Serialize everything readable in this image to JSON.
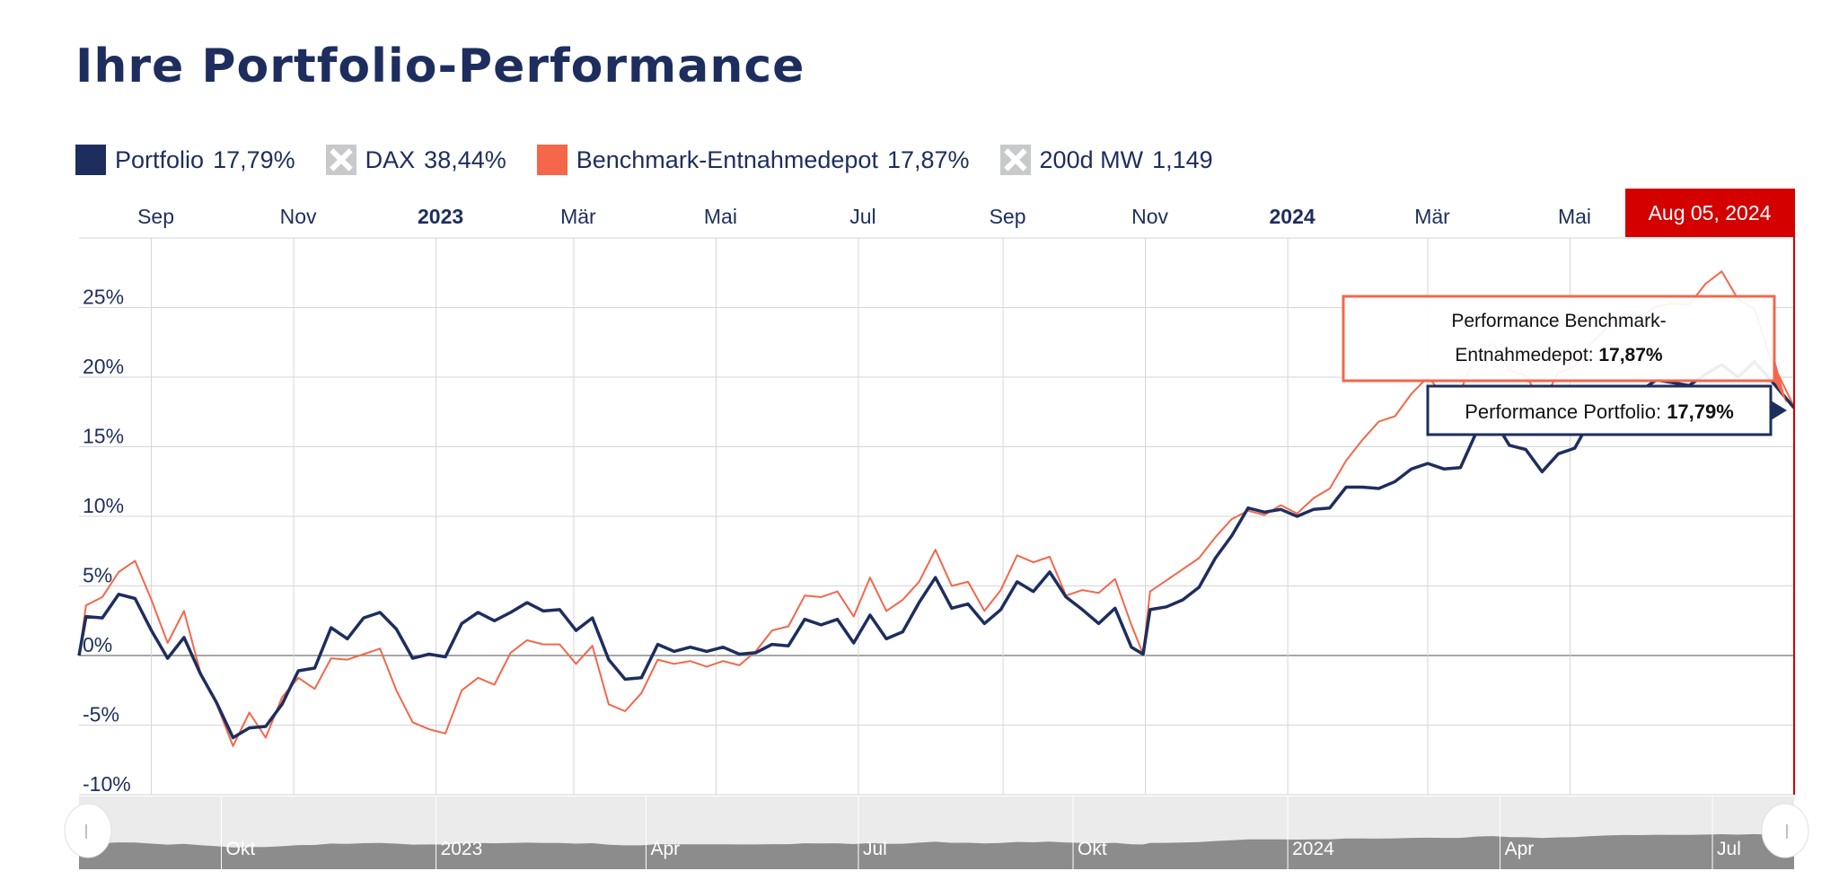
{
  "title": "Ihre Portfolio-Performance",
  "legend": [
    {
      "name": "Portfolio",
      "value": "17,79%",
      "color": "#1d2e5e",
      "enabled": true
    },
    {
      "name": "DAX",
      "value": "38,44%",
      "color": "#c8c9cb",
      "enabled": false
    },
    {
      "name": "Benchmark-Entnahmedepot",
      "value": "17,87%",
      "color": "#f4674a",
      "enabled": true
    },
    {
      "name": "200d MW",
      "value": "1,149",
      "color": "#c8c9cb",
      "enabled": false
    }
  ],
  "crosshair": {
    "date_label": "Aug 05, 2024",
    "color": "#d40000"
  },
  "tooltips": {
    "benchmark": {
      "label_line1": "Performance Benchmark-",
      "label_line2": "Entnahmedepot",
      "value": "17,87%"
    },
    "portfolio": {
      "label": "Performance Portfolio",
      "value": "17,79%"
    }
  },
  "navigator": {
    "labels": [
      "Okt",
      "2023",
      "Apr",
      "Jul",
      "Okt",
      "2024",
      "Apr",
      "Jul"
    ]
  },
  "chart_data": {
    "type": "line",
    "x_ticks": [
      {
        "label": "Sep",
        "date": "2022-09-01",
        "bold": false
      },
      {
        "label": "Nov",
        "date": "2022-11-01",
        "bold": false
      },
      {
        "label": "2023",
        "date": "2023-01-01",
        "bold": true
      },
      {
        "label": "Mär",
        "date": "2023-03-01",
        "bold": false
      },
      {
        "label": "Mai",
        "date": "2023-05-01",
        "bold": false
      },
      {
        "label": "Jul",
        "date": "2023-07-01",
        "bold": false
      },
      {
        "label": "Sep",
        "date": "2023-09-01",
        "bold": false
      },
      {
        "label": "Nov",
        "date": "2023-11-01",
        "bold": false
      },
      {
        "label": "2024",
        "date": "2024-01-01",
        "bold": true
      },
      {
        "label": "Mär",
        "date": "2024-03-01",
        "bold": false
      },
      {
        "label": "Mai",
        "date": "2024-05-01",
        "bold": false
      }
    ],
    "x_range": [
      "2022-08-01",
      "2024-08-05"
    ],
    "y_ticks": [
      -10,
      -5,
      0,
      5,
      10,
      15,
      20,
      25
    ],
    "y_tick_format": "{v}%",
    "ylim": [
      -10,
      30
    ],
    "grid": true,
    "legend_position": "top-left",
    "series": [
      {
        "name": "Portfolio",
        "color": "#1d2e5e",
        "width": 3.5,
        "points": [
          [
            "2022-08-01",
            0
          ],
          [
            "2022-08-04",
            2.8
          ],
          [
            "2022-08-11",
            2.7
          ],
          [
            "2022-08-18",
            4.4
          ],
          [
            "2022-08-25",
            4.1
          ],
          [
            "2022-09-01",
            1.8
          ],
          [
            "2022-09-08",
            -0.2
          ],
          [
            "2022-09-15",
            1.3
          ],
          [
            "2022-09-22",
            -1.3
          ],
          [
            "2022-09-29",
            -3.4
          ],
          [
            "2022-10-06",
            -5.9
          ],
          [
            "2022-10-13",
            -5.2
          ],
          [
            "2022-10-20",
            -5.1
          ],
          [
            "2022-10-27",
            -3.5
          ],
          [
            "2022-11-03",
            -1.1
          ],
          [
            "2022-11-10",
            -0.9
          ],
          [
            "2022-11-17",
            2.0
          ],
          [
            "2022-11-24",
            1.2
          ],
          [
            "2022-12-01",
            2.7
          ],
          [
            "2022-12-08",
            3.1
          ],
          [
            "2022-12-15",
            1.9
          ],
          [
            "2022-12-22",
            -0.2
          ],
          [
            "2022-12-29",
            0.1
          ],
          [
            "2023-01-05",
            -0.1
          ],
          [
            "2023-01-12",
            2.3
          ],
          [
            "2023-01-19",
            3.1
          ],
          [
            "2023-01-26",
            2.5
          ],
          [
            "2023-02-02",
            3.1
          ],
          [
            "2023-02-09",
            3.8
          ],
          [
            "2023-02-16",
            3.2
          ],
          [
            "2023-02-23",
            3.3
          ],
          [
            "2023-03-02",
            1.8
          ],
          [
            "2023-03-09",
            2.7
          ],
          [
            "2023-03-16",
            -0.3
          ],
          [
            "2023-03-23",
            -1.7
          ],
          [
            "2023-03-30",
            -1.6
          ],
          [
            "2023-04-06",
            0.8
          ],
          [
            "2023-04-13",
            0.3
          ],
          [
            "2023-04-20",
            0.6
          ],
          [
            "2023-04-27",
            0.3
          ],
          [
            "2023-05-04",
            0.6
          ],
          [
            "2023-05-11",
            0.1
          ],
          [
            "2023-05-18",
            0.2
          ],
          [
            "2023-05-25",
            0.8
          ],
          [
            "2023-06-01",
            0.7
          ],
          [
            "2023-06-08",
            2.6
          ],
          [
            "2023-06-15",
            2.2
          ],
          [
            "2023-06-22",
            2.6
          ],
          [
            "2023-06-29",
            0.9
          ],
          [
            "2023-07-06",
            2.9
          ],
          [
            "2023-07-13",
            1.2
          ],
          [
            "2023-07-20",
            1.7
          ],
          [
            "2023-07-27",
            3.8
          ],
          [
            "2023-08-03",
            5.6
          ],
          [
            "2023-08-10",
            3.4
          ],
          [
            "2023-08-17",
            3.7
          ],
          [
            "2023-08-24",
            2.3
          ],
          [
            "2023-08-31",
            3.3
          ],
          [
            "2023-09-07",
            5.3
          ],
          [
            "2023-09-14",
            4.6
          ],
          [
            "2023-09-21",
            6.0
          ],
          [
            "2023-09-28",
            4.2
          ],
          [
            "2023-10-05",
            3.3
          ],
          [
            "2023-10-12",
            2.3
          ],
          [
            "2023-10-19",
            3.4
          ],
          [
            "2023-10-26",
            0.6
          ],
          [
            "2023-10-31",
            0.1
          ],
          [
            "2023-11-03",
            3.3
          ],
          [
            "2023-11-10",
            3.5
          ],
          [
            "2023-11-17",
            4.0
          ],
          [
            "2023-11-24",
            4.9
          ],
          [
            "2023-12-01",
            7.0
          ],
          [
            "2023-12-08",
            8.6
          ],
          [
            "2023-12-15",
            10.6
          ],
          [
            "2023-12-22",
            10.3
          ],
          [
            "2023-12-29",
            10.5
          ],
          [
            "2024-01-05",
            10.0
          ],
          [
            "2024-01-12",
            10.5
          ],
          [
            "2024-01-19",
            10.6
          ],
          [
            "2024-01-26",
            12.1
          ],
          [
            "2024-02-02",
            12.1
          ],
          [
            "2024-02-09",
            12.0
          ],
          [
            "2024-02-16",
            12.5
          ],
          [
            "2024-02-23",
            13.4
          ],
          [
            "2024-03-01",
            13.8
          ],
          [
            "2024-03-08",
            13.4
          ],
          [
            "2024-03-15",
            13.5
          ],
          [
            "2024-03-22",
            16.1
          ],
          [
            "2024-03-29",
            17.0
          ],
          [
            "2024-04-05",
            15.1
          ],
          [
            "2024-04-12",
            14.8
          ],
          [
            "2024-04-19",
            13.2
          ],
          [
            "2024-04-26",
            14.5
          ],
          [
            "2024-05-03",
            14.9
          ],
          [
            "2024-05-10",
            17.0
          ],
          [
            "2024-05-17",
            18.3
          ],
          [
            "2024-05-24",
            19.2
          ],
          [
            "2024-05-31",
            19.0
          ],
          [
            "2024-06-07",
            19.8
          ],
          [
            "2024-06-14",
            19.6
          ],
          [
            "2024-06-21",
            19.4
          ],
          [
            "2024-06-28",
            20.2
          ],
          [
            "2024-07-05",
            20.9
          ],
          [
            "2024-07-12",
            20.0
          ],
          [
            "2024-07-19",
            21.1
          ],
          [
            "2024-07-26",
            19.8
          ],
          [
            "2024-08-05",
            17.79
          ]
        ]
      },
      {
        "name": "Benchmark-Entnahmedepot",
        "color": "#f4674a",
        "width": 2,
        "points": [
          [
            "2022-08-01",
            0
          ],
          [
            "2022-08-04",
            3.6
          ],
          [
            "2022-08-11",
            4.2
          ],
          [
            "2022-08-18",
            6.0
          ],
          [
            "2022-08-25",
            6.8
          ],
          [
            "2022-09-01",
            4.0
          ],
          [
            "2022-09-08",
            0.9
          ],
          [
            "2022-09-15",
            3.2
          ],
          [
            "2022-09-22",
            -1.2
          ],
          [
            "2022-09-29",
            -3.5
          ],
          [
            "2022-10-06",
            -6.5
          ],
          [
            "2022-10-13",
            -4.1
          ],
          [
            "2022-10-20",
            -5.9
          ],
          [
            "2022-10-27",
            -3.0
          ],
          [
            "2022-11-03",
            -1.6
          ],
          [
            "2022-11-10",
            -2.4
          ],
          [
            "2022-11-17",
            -0.2
          ],
          [
            "2022-11-24",
            -0.3
          ],
          [
            "2022-12-01",
            0.1
          ],
          [
            "2022-12-08",
            0.5
          ],
          [
            "2022-12-15",
            -2.5
          ],
          [
            "2022-12-22",
            -4.8
          ],
          [
            "2022-12-29",
            -5.3
          ],
          [
            "2023-01-05",
            -5.6
          ],
          [
            "2023-01-12",
            -2.5
          ],
          [
            "2023-01-19",
            -1.6
          ],
          [
            "2023-01-26",
            -2.1
          ],
          [
            "2023-02-02",
            0.2
          ],
          [
            "2023-02-09",
            1.1
          ],
          [
            "2023-02-16",
            0.8
          ],
          [
            "2023-02-23",
            0.8
          ],
          [
            "2023-03-02",
            -0.6
          ],
          [
            "2023-03-09",
            0.7
          ],
          [
            "2023-03-16",
            -3.5
          ],
          [
            "2023-03-23",
            -4.0
          ],
          [
            "2023-03-30",
            -2.7
          ],
          [
            "2023-04-06",
            -0.3
          ],
          [
            "2023-04-13",
            -0.6
          ],
          [
            "2023-04-20",
            -0.4
          ],
          [
            "2023-04-27",
            -0.8
          ],
          [
            "2023-05-04",
            -0.4
          ],
          [
            "2023-05-11",
            -0.7
          ],
          [
            "2023-05-18",
            0.3
          ],
          [
            "2023-05-25",
            1.8
          ],
          [
            "2023-06-01",
            2.1
          ],
          [
            "2023-06-08",
            4.3
          ],
          [
            "2023-06-15",
            4.2
          ],
          [
            "2023-06-22",
            4.6
          ],
          [
            "2023-06-29",
            2.8
          ],
          [
            "2023-07-06",
            5.6
          ],
          [
            "2023-07-13",
            3.2
          ],
          [
            "2023-07-20",
            4.0
          ],
          [
            "2023-07-27",
            5.3
          ],
          [
            "2023-08-03",
            7.6
          ],
          [
            "2023-08-10",
            5.0
          ],
          [
            "2023-08-17",
            5.3
          ],
          [
            "2023-08-24",
            3.2
          ],
          [
            "2023-08-31",
            4.7
          ],
          [
            "2023-09-07",
            7.2
          ],
          [
            "2023-09-14",
            6.7
          ],
          [
            "2023-09-21",
            7.1
          ],
          [
            "2023-09-28",
            4.3
          ],
          [
            "2023-10-05",
            4.7
          ],
          [
            "2023-10-12",
            4.5
          ],
          [
            "2023-10-19",
            5.5
          ],
          [
            "2023-10-26",
            2.2
          ],
          [
            "2023-10-31",
            0.1
          ],
          [
            "2023-11-03",
            4.6
          ],
          [
            "2023-11-10",
            5.4
          ],
          [
            "2023-11-17",
            6.2
          ],
          [
            "2023-11-24",
            7.0
          ],
          [
            "2023-12-01",
            8.5
          ],
          [
            "2023-12-08",
            9.8
          ],
          [
            "2023-12-15",
            10.4
          ],
          [
            "2023-12-22",
            10.1
          ],
          [
            "2023-12-29",
            10.8
          ],
          [
            "2024-01-05",
            10.2
          ],
          [
            "2024-01-12",
            11.3
          ],
          [
            "2024-01-19",
            12.0
          ],
          [
            "2024-01-26",
            14.0
          ],
          [
            "2024-02-02",
            15.5
          ],
          [
            "2024-02-09",
            16.8
          ],
          [
            "2024-02-16",
            17.2
          ],
          [
            "2024-02-23",
            18.8
          ],
          [
            "2024-03-01",
            20.0
          ],
          [
            "2024-03-08",
            18.7
          ],
          [
            "2024-03-15",
            19.0
          ],
          [
            "2024-03-22",
            21.8
          ],
          [
            "2024-03-29",
            22.4
          ],
          [
            "2024-04-05",
            20.5
          ],
          [
            "2024-04-12",
            20.1
          ],
          [
            "2024-04-19",
            18.2
          ],
          [
            "2024-04-26",
            20.3
          ],
          [
            "2024-05-03",
            20.8
          ],
          [
            "2024-05-10",
            22.4
          ],
          [
            "2024-05-17",
            23.6
          ],
          [
            "2024-05-24",
            24.6
          ],
          [
            "2024-05-31",
            24.3
          ],
          [
            "2024-06-07",
            25.1
          ],
          [
            "2024-06-14",
            25.3
          ],
          [
            "2024-06-21",
            25.2
          ],
          [
            "2024-06-28",
            26.7
          ],
          [
            "2024-07-05",
            27.6
          ],
          [
            "2024-07-12",
            25.6
          ],
          [
            "2024-07-19",
            24.9
          ],
          [
            "2024-07-26",
            21.3
          ],
          [
            "2024-08-05",
            17.87
          ]
        ]
      }
    ]
  }
}
